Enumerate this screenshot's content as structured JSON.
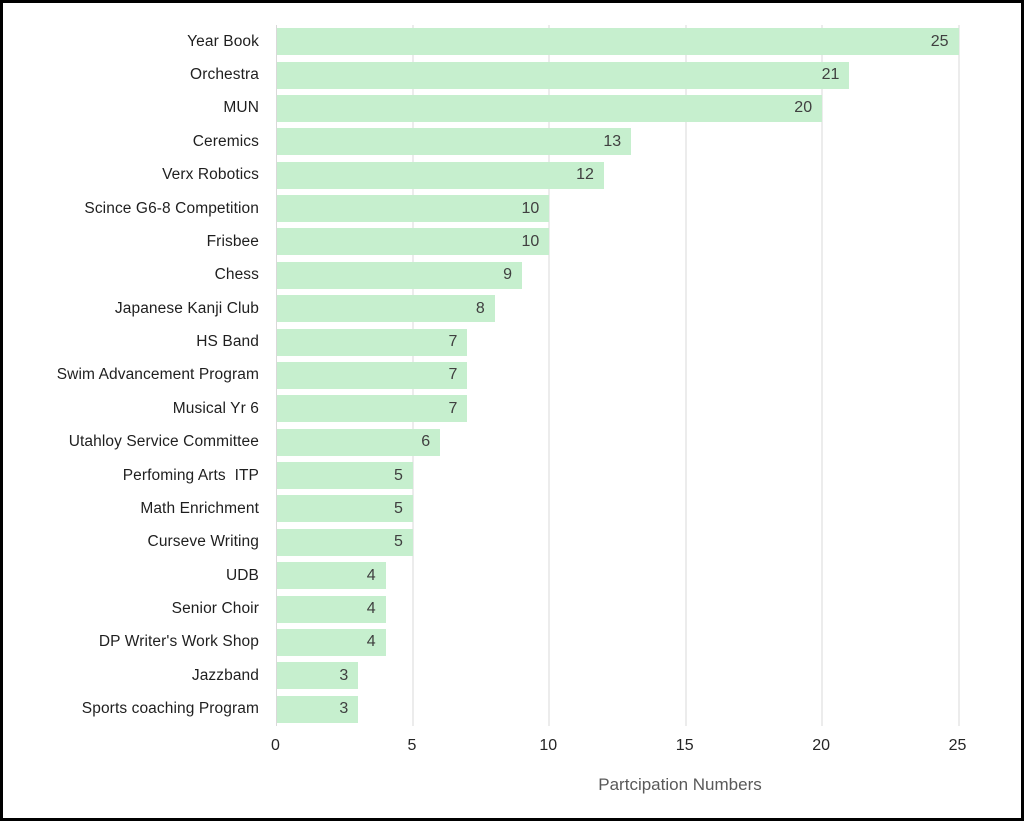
{
  "chart_data": {
    "type": "bar",
    "orientation": "horizontal",
    "title": "",
    "xlabel": "Partcipation Numbers",
    "ylabel": "",
    "categories": [
      "Year Book",
      "Orchestra",
      "MUN",
      "Ceremics",
      "Verx Robotics",
      "Scince G6-8 Competition",
      "Frisbee",
      "Chess",
      "Japanese Kanji Club",
      "HS Band",
      "Swim Advancement Program",
      "Musical Yr 6",
      "Utahloy Service Committee",
      "Perfoming Arts  ITP",
      "Math Enrichment",
      "Curseve Writing",
      "UDB",
      "Senior Choir",
      "DP Writer's Work Shop",
      "Jazzband",
      "Sports coaching Program"
    ],
    "values": [
      25,
      21,
      20,
      13,
      12,
      10,
      10,
      9,
      8,
      7,
      7,
      7,
      6,
      5,
      5,
      5,
      4,
      4,
      4,
      3,
      3
    ],
    "xlim": [
      0,
      25
    ],
    "xticks": [
      0,
      5,
      10,
      15,
      20,
      25
    ],
    "grid": "vertical-gridlines",
    "legend": "none",
    "value_labels": "inside-end",
    "colors": {
      "bar_fill": "#C6EFCE",
      "gridline": "#D9D9D9",
      "axis_line": "#D9D9D9",
      "value_label": "#404040",
      "category_label": "#1F1F1F",
      "tick_label": "#262626",
      "axis_title": "#595959",
      "frame_border": "#000000",
      "background": "#FFFFFF"
    }
  }
}
